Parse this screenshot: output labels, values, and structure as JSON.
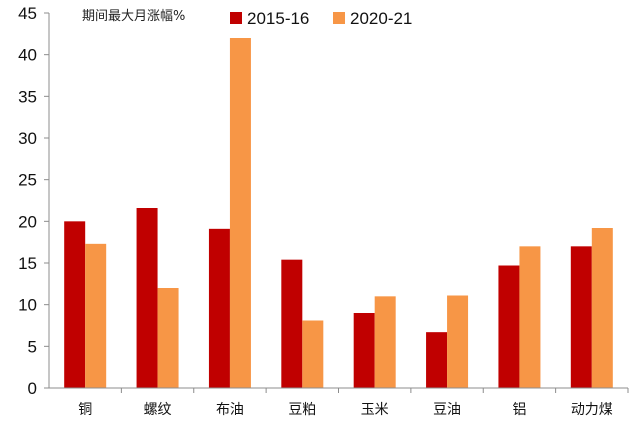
{
  "chart_data": {
    "type": "bar",
    "title": "",
    "ylabel": "期间最大月涨幅%",
    "xlabel": "",
    "ylim": [
      0,
      45
    ],
    "yticks": [
      0,
      5,
      10,
      15,
      20,
      25,
      30,
      35,
      40,
      45
    ],
    "grid": false,
    "legend_position": "top",
    "categories": [
      "铜",
      "螺纹",
      "布油",
      "豆粕",
      "玉米",
      "豆油",
      "铝",
      "动力煤"
    ],
    "series": [
      {
        "name": "2015-16",
        "color": "#C00000",
        "values": [
          20.0,
          21.6,
          19.1,
          15.4,
          9.0,
          6.7,
          14.7,
          17.0
        ]
      },
      {
        "name": "2020-21",
        "color": "#F79646",
        "values": [
          17.3,
          12.0,
          42.0,
          8.1,
          11.0,
          11.1,
          17.0,
          19.2
        ]
      }
    ]
  }
}
